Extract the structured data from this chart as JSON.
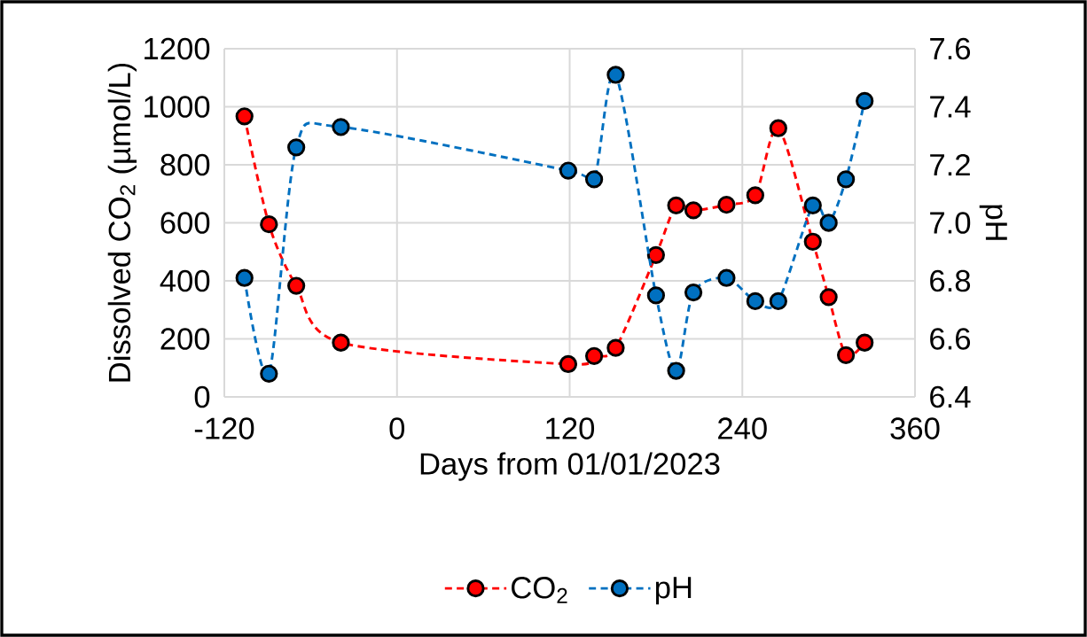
{
  "chart_data": {
    "type": "line",
    "xlabel": "Days from 01/01/2023",
    "ylabel": "Dissolved CO$_{2}$ (µmol/L)",
    "y2label": "pH",
    "x": [
      -106,
      -89,
      -70,
      -39,
      119,
      137,
      152,
      180,
      194,
      206,
      229,
      249,
      265,
      289,
      300,
      312,
      325
    ],
    "series": [
      {
        "name": "CO$_{2}$",
        "color": "#ff0000",
        "values": [
          967,
          595,
          383,
          187,
          113,
          141,
          169,
          489,
          660,
          643,
          662,
          695,
          926,
          535,
          344,
          144,
          187
        ]
      },
      {
        "name": "pH",
        "color": "#0070c0",
        "axis": "y2",
        "values": [
          6.81,
          6.48,
          7.26,
          7.33,
          7.18,
          7.15,
          7.51,
          6.75,
          6.49,
          6.76,
          6.81,
          6.73,
          6.73,
          7.06,
          7.0,
          7.15,
          7.42
        ]
      }
    ],
    "xlim": [
      -120,
      360
    ],
    "ylim": [
      0,
      1200
    ],
    "y2lim": [
      6.4,
      7.6
    ],
    "xticks": [
      -120,
      0,
      120,
      240,
      360
    ],
    "yticks": [
      0,
      200,
      400,
      600,
      800,
      1000,
      1200
    ],
    "y2ticks": [
      6.4,
      6.6,
      6.8,
      {
        "value": 7.0,
        "label": "7.0"
      },
      7.2,
      7.4,
      7.6
    ],
    "grid": true,
    "legend": "bottom",
    "marker": "circle",
    "line_style": "dashed"
  }
}
